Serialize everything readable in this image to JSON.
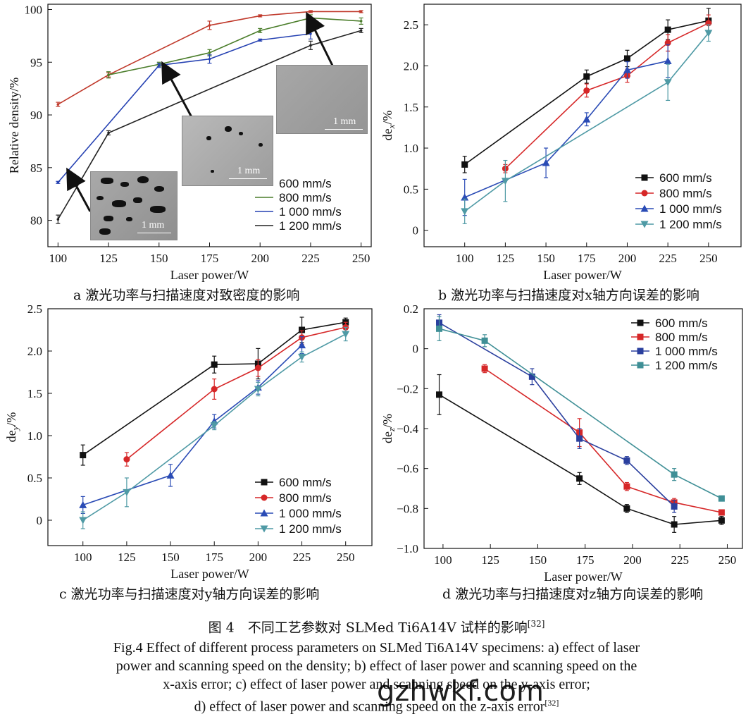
{
  "figure": {
    "caption_cn": "图 4　不同工艺参数对 SLMed Ti6A14V 试样的影响",
    "caption_cn_ref": "[32]",
    "caption_en_1": "Fig.4 Effect of different process parameters on SLMed Ti6A14V specimens: a) effect of laser",
    "caption_en_2": "power and scanning speed on the density; b) effect of laser power and scanning speed on the",
    "caption_en_3": "x-axis error; c) effect of laser power and scanning speed on the y-axis error;",
    "caption_en_4": "d) effect of laser power and scanning speed on the z-axis error",
    "caption_en_ref": "[32]",
    "watermark": "gzhwkf.com"
  },
  "insets": {
    "scale_label": "1 mm"
  },
  "chart_data": [
    {
      "id": "a",
      "type": "line",
      "subcaption": "a  激光功率与扫描速度对致密度的影响",
      "xlabel": "Laser power/W",
      "ylabel": "Relative density/%",
      "xlim": [
        95,
        255
      ],
      "ylim": [
        77.5,
        100.5
      ],
      "xticks": [
        100,
        125,
        150,
        175,
        200,
        225,
        250
      ],
      "yticks": [
        80,
        85,
        90,
        95,
        100
      ],
      "legend": "bottom-right",
      "series": [
        {
          "name": "600 mm/s",
          "color": "#c0392b",
          "x": [
            100,
            125,
            175,
            200,
            225,
            250
          ],
          "y": [
            91.0,
            93.8,
            98.5,
            99.4,
            99.8,
            99.8
          ],
          "err": [
            0.2,
            0.2,
            0.4,
            0.1,
            0.1,
            0.1
          ]
        },
        {
          "name": "800 mm/s",
          "color": "#4a7d2a",
          "x": [
            125,
            150,
            175,
            200,
            225,
            250
          ],
          "y": [
            93.8,
            94.8,
            95.9,
            98.0,
            99.2,
            98.9
          ],
          "err": [
            0.3,
            0.2,
            0.3,
            0.2,
            0.3,
            0.3
          ]
        },
        {
          "name": "1 000 mm/s",
          "color": "#2541b2",
          "x": [
            100,
            150,
            175,
            200,
            225
          ],
          "y": [
            83.6,
            94.7,
            95.3,
            97.1,
            97.7
          ],
          "err": [
            0.1,
            0.2,
            0.4,
            0.1,
            0.5
          ]
        },
        {
          "name": "1 200 mm/s",
          "color": "#222222",
          "x": [
            100,
            125,
            225,
            250
          ],
          "y": [
            80.1,
            88.3,
            96.6,
            98.0
          ],
          "err": [
            0.4,
            0.2,
            0.4,
            0.2
          ]
        }
      ]
    },
    {
      "id": "b",
      "type": "line",
      "subcaption": "b  激光功率与扫描速度对x轴方向误差的影响",
      "xlabel": "Laser power/W",
      "ylabel": "de_x/%",
      "ylabel_main": "de",
      "ylabel_sub": "x",
      "ylabel_unit": "/%",
      "xlim": [
        75,
        270
      ],
      "ylim": [
        -0.2,
        2.75
      ],
      "xticks": [
        100,
        125,
        150,
        175,
        200,
        225,
        250
      ],
      "yticks": [
        0,
        0.5,
        1.0,
        1.5,
        2.0,
        2.5
      ],
      "ytick_labels": [
        "0",
        "0.5",
        "1.0",
        "1.5",
        "2.0",
        "2.5"
      ],
      "legend": "bottom-right",
      "series": [
        {
          "name": "600 mm/s",
          "color": "#111111",
          "marker": "square",
          "x": [
            100,
            175,
            200,
            225,
            250
          ],
          "y": [
            0.8,
            1.87,
            2.09,
            2.44,
            2.55
          ],
          "err": [
            0.1,
            0.08,
            0.1,
            0.12,
            0.15
          ]
        },
        {
          "name": "800 mm/s",
          "color": "#d62728",
          "marker": "circle",
          "x": [
            125,
            175,
            200,
            225,
            250
          ],
          "y": [
            0.75,
            1.7,
            1.88,
            2.28,
            2.52
          ],
          "err": [
            0.05,
            0.08,
            0.08,
            0.1,
            0.1
          ]
        },
        {
          "name": "1 000 mm/s",
          "color": "#2a4bb5",
          "marker": "triangle",
          "x": [
            100,
            150,
            175,
            200,
            225
          ],
          "y": [
            0.4,
            0.82,
            1.35,
            1.95,
            2.06
          ],
          "err": [
            0.22,
            0.18,
            0.08,
            0.1,
            0.2
          ]
        },
        {
          "name": "1 200 mm/s",
          "color": "#4f9aa5",
          "marker": "triangle-down",
          "x": [
            100,
            125,
            225,
            250
          ],
          "y": [
            0.23,
            0.6,
            1.8,
            2.4
          ],
          "err": [
            0.15,
            0.25,
            0.22,
            0.1
          ]
        }
      ]
    },
    {
      "id": "c",
      "type": "line",
      "subcaption": "c  激光功率与扫描速度对y轴方向误差的影响",
      "xlabel": "Laser power/W",
      "ylabel": "de_y/%",
      "ylabel_main": "de",
      "ylabel_sub": "y",
      "ylabel_unit": "/%",
      "xlim": [
        80,
        265
      ],
      "ylim": [
        -0.3,
        2.5
      ],
      "xticks": [
        100,
        125,
        150,
        175,
        200,
        225,
        250
      ],
      "yticks": [
        0,
        0.5,
        1.0,
        1.5,
        2.0,
        2.5
      ],
      "ytick_labels": [
        "0",
        "0.5",
        "1.0",
        "1.5",
        "2.0",
        "2.5"
      ],
      "legend": "bottom-right",
      "series": [
        {
          "name": "600 mm/s",
          "color": "#111111",
          "marker": "square",
          "x": [
            100,
            175,
            200,
            225,
            250
          ],
          "y": [
            0.77,
            1.84,
            1.85,
            2.25,
            2.34
          ],
          "err": [
            0.12,
            0.1,
            0.18,
            0.15,
            0.05
          ]
        },
        {
          "name": "800 mm/s",
          "color": "#d62728",
          "marker": "circle",
          "x": [
            125,
            175,
            200,
            225,
            250
          ],
          "y": [
            0.72,
            1.55,
            1.8,
            2.16,
            2.28
          ],
          "err": [
            0.08,
            0.12,
            0.1,
            0.08,
            0.06
          ]
        },
        {
          "name": "1 000 mm/s",
          "color": "#2a4bb5",
          "marker": "triangle",
          "x": [
            100,
            150,
            175,
            200,
            225
          ],
          "y": [
            0.18,
            0.53,
            1.17,
            1.57,
            2.07
          ],
          "err": [
            0.1,
            0.13,
            0.08,
            0.08,
            0.1
          ]
        },
        {
          "name": "1 200 mm/s",
          "color": "#4f9aa5",
          "marker": "triangle-down",
          "x": [
            100,
            125,
            175,
            200,
            225,
            250
          ],
          "y": [
            0.0,
            0.33,
            1.12,
            1.55,
            1.93,
            2.2
          ],
          "err": [
            0.1,
            0.17,
            0.05,
            0.08,
            0.06,
            0.08
          ]
        }
      ]
    },
    {
      "id": "d",
      "type": "line",
      "subcaption": "d  激光功率与扫描速度对z轴方向误差的影响",
      "xlabel": "Laser power/W",
      "ylabel": "de_z/%",
      "ylabel_main": "de",
      "ylabel_sub": "z",
      "ylabel_unit": "/%",
      "xlim": [
        90,
        258
      ],
      "ylim": [
        -1.0,
        0.2
      ],
      "xticks": [
        100,
        125,
        150,
        175,
        200,
        225,
        250
      ],
      "yticks": [
        -1.0,
        -0.8,
        -0.6,
        -0.4,
        -0.2,
        0,
        0.2
      ],
      "ytick_labels": [
        "−1.0",
        "−0.8",
        "−0.6",
        "−0.4",
        "−0.2",
        "0",
        "0.2"
      ],
      "legend": "top-right",
      "series": [
        {
          "name": "600 mm/s",
          "color": "#111111",
          "marker": "square",
          "x": [
            98,
            172,
            197,
            222,
            247
          ],
          "y": [
            -0.23,
            -0.65,
            -0.8,
            -0.88,
            -0.86
          ],
          "err": [
            0.1,
            0.03,
            0.02,
            0.04,
            0.02
          ]
        },
        {
          "name": "800 mm/s",
          "color": "#d62728",
          "marker": "square",
          "x": [
            122,
            172,
            197,
            222,
            247
          ],
          "y": [
            -0.1,
            -0.42,
            -0.69,
            -0.77,
            -0.82
          ],
          "err": [
            0.02,
            0.07,
            0.02,
            0.02,
            0.01
          ]
        },
        {
          "name": "1 000 mm/s",
          "color": "#2a3f9e",
          "marker": "square",
          "x": [
            98,
            147,
            172,
            197,
            222
          ],
          "y": [
            0.13,
            -0.14,
            -0.45,
            -0.56,
            -0.79
          ],
          "err": [
            0.04,
            0.04,
            0.05,
            0.02,
            0.03
          ]
        },
        {
          "name": "1 200 mm/s",
          "color": "#3f8f96",
          "marker": "square",
          "x": [
            98,
            122,
            222,
            247
          ],
          "y": [
            0.1,
            0.04,
            -0.63,
            -0.75
          ],
          "err": [
            0.06,
            0.03,
            0.03,
            0.01
          ]
        }
      ]
    }
  ]
}
